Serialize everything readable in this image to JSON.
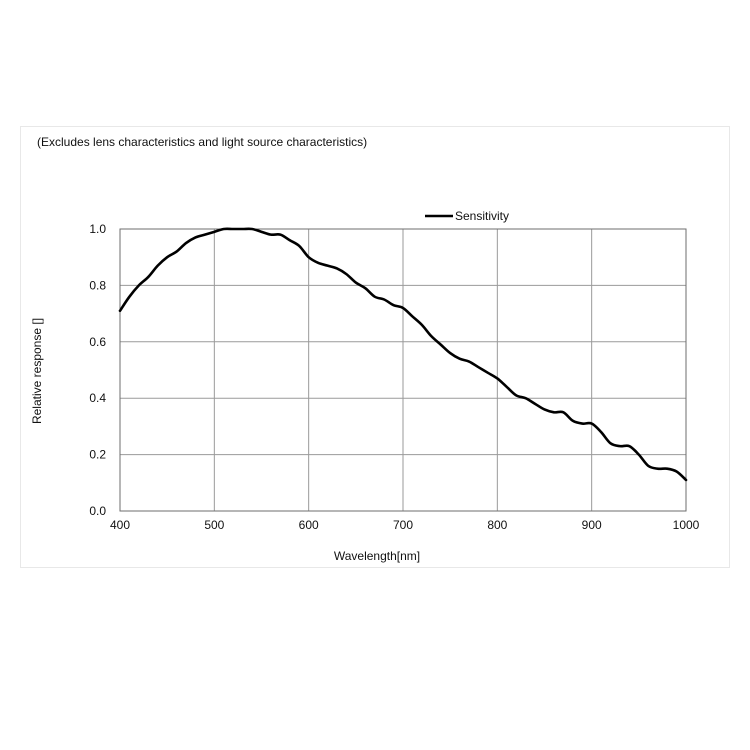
{
  "note": "(Excludes lens characteristics and light source characteristics)",
  "chart_data": {
    "type": "line",
    "title": "",
    "xlabel": "Wavelength[nm]",
    "ylabel": "Relative response []",
    "xlim": [
      400,
      1000
    ],
    "ylim": [
      0.0,
      1.0
    ],
    "xticks": [
      400,
      500,
      600,
      700,
      800,
      900,
      1000
    ],
    "yticks": [
      "0.0",
      "0.2",
      "0.4",
      "0.6",
      "0.8",
      "1.0"
    ],
    "grid": true,
    "legend_position": "top-right",
    "series": [
      {
        "name": "Sensitivity",
        "color": "#000000",
        "x": [
          400,
          410,
          420,
          430,
          440,
          450,
          460,
          470,
          480,
          490,
          500,
          510,
          520,
          530,
          540,
          550,
          560,
          570,
          580,
          590,
          600,
          610,
          620,
          630,
          640,
          650,
          660,
          670,
          680,
          690,
          700,
          710,
          720,
          730,
          740,
          750,
          760,
          770,
          780,
          790,
          800,
          810,
          820,
          830,
          840,
          850,
          860,
          870,
          880,
          890,
          900,
          910,
          920,
          930,
          940,
          950,
          960,
          970,
          980,
          990,
          1000
        ],
        "y": [
          0.71,
          0.76,
          0.8,
          0.83,
          0.87,
          0.9,
          0.92,
          0.95,
          0.97,
          0.98,
          0.99,
          1.0,
          1.0,
          1.0,
          1.0,
          0.99,
          0.98,
          0.98,
          0.96,
          0.94,
          0.9,
          0.88,
          0.87,
          0.86,
          0.84,
          0.81,
          0.79,
          0.76,
          0.75,
          0.73,
          0.72,
          0.69,
          0.66,
          0.62,
          0.59,
          0.56,
          0.54,
          0.53,
          0.51,
          0.49,
          0.47,
          0.44,
          0.41,
          0.4,
          0.38,
          0.36,
          0.35,
          0.35,
          0.32,
          0.31,
          0.31,
          0.28,
          0.24,
          0.23,
          0.23,
          0.2,
          0.16,
          0.15,
          0.15,
          0.14,
          0.11
        ]
      }
    ]
  }
}
